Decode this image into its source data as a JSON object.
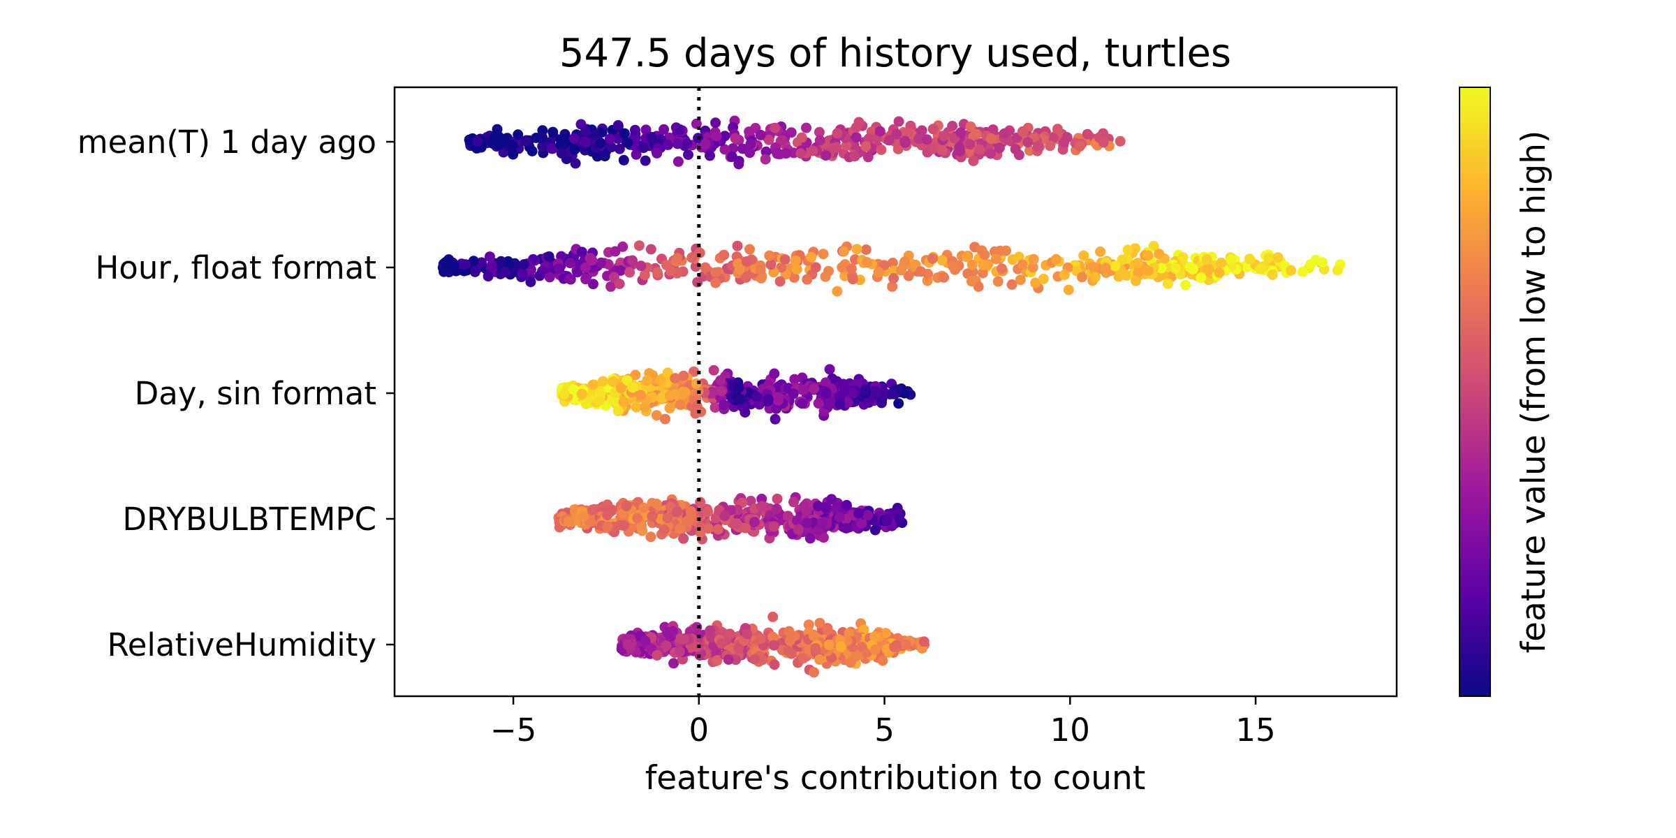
{
  "chart_data": {
    "type": "scatter",
    "subtype": "beeswarm",
    "title": "547.5 days of history used, turtles",
    "xlabel": "feature's contribution to count",
    "colorbar_label": "feature value (from low to high)",
    "xlim": [
      -8.2,
      18.8
    ],
    "x_ticks": [
      {
        "value": -5,
        "label": "−5"
      },
      {
        "value": 0,
        "label": "0"
      },
      {
        "value": 5,
        "label": "5"
      },
      {
        "value": 10,
        "label": "10"
      },
      {
        "value": 15,
        "label": "15"
      }
    ],
    "reference_line": {
      "x": 0,
      "style": "dotted"
    },
    "colormap": [
      "#0d0887",
      "#5c01a6",
      "#9c179e",
      "#cc4778",
      "#ed7953",
      "#fdb42f",
      "#f0f921"
    ],
    "features": [
      {
        "name": "mean(T) 1 day ago",
        "min": -6.2,
        "max": 11.4,
        "value_trend": [
          [
            -6.2,
            0.0
          ],
          [
            -2.0,
            0.08
          ],
          [
            0.5,
            0.25
          ],
          [
            3.0,
            0.45
          ],
          [
            7.0,
            0.5
          ],
          [
            9.5,
            0.55
          ],
          [
            11.4,
            0.62
          ]
        ]
      },
      {
        "name": "Hour, float format",
        "min": -6.9,
        "max": 17.4,
        "value_trend": [
          [
            -6.9,
            0.0
          ],
          [
            -3.0,
            0.25
          ],
          [
            -1.0,
            0.55
          ],
          [
            2.0,
            0.68
          ],
          [
            8.0,
            0.75
          ],
          [
            11.0,
            0.85
          ],
          [
            14.0,
            0.95
          ],
          [
            17.4,
            1.0
          ]
        ]
      },
      {
        "name": "Day, sin format",
        "min": -3.7,
        "max": 5.7,
        "value_trend": [
          [
            -3.7,
            0.97
          ],
          [
            -1.5,
            0.85
          ],
          [
            0.0,
            0.68
          ],
          [
            1.0,
            0.1
          ],
          [
            2.5,
            0.3
          ],
          [
            4.0,
            0.2
          ],
          [
            5.7,
            0.0
          ]
        ]
      },
      {
        "name": "DRYBULBTEMPC",
        "min": -3.8,
        "max": 5.5,
        "value_trend": [
          [
            -3.8,
            0.65
          ],
          [
            -1.5,
            0.68
          ],
          [
            0.0,
            0.55
          ],
          [
            2.0,
            0.4
          ],
          [
            4.0,
            0.25
          ],
          [
            5.5,
            0.1
          ]
        ]
      },
      {
        "name": "RelativeHumidity",
        "min": -2.1,
        "max": 6.1,
        "value_trend": [
          [
            -2.1,
            0.35
          ],
          [
            0.0,
            0.45
          ],
          [
            2.0,
            0.6
          ],
          [
            3.5,
            0.68
          ],
          [
            4.6,
            0.75
          ],
          [
            6.1,
            0.68
          ]
        ]
      }
    ]
  }
}
